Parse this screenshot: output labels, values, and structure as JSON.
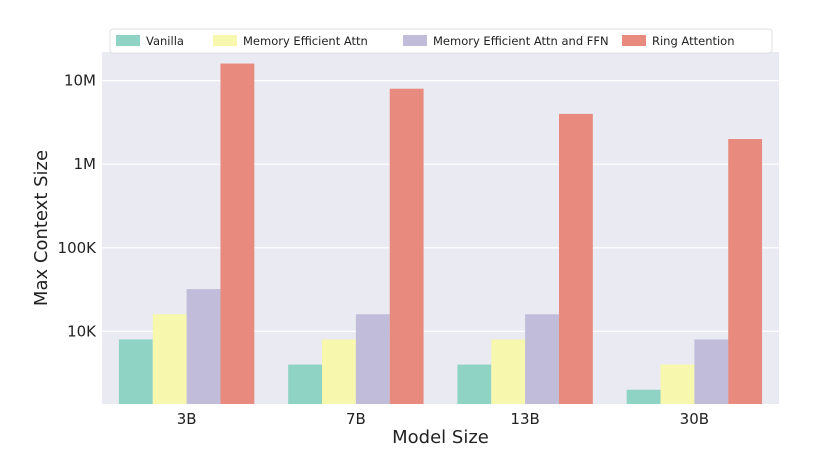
{
  "chart_data": {
    "type": "bar",
    "categories": [
      "3B",
      "7B",
      "13B",
      "30B"
    ],
    "series": [
      {
        "name": "Vanilla",
        "values": [
          8000,
          4000,
          4000,
          2000
        ],
        "color": "#8fd3c4"
      },
      {
        "name": "Memory Efficient Attn",
        "values": [
          16000,
          8000,
          8000,
          4000
        ],
        "color": "#f7f7ad"
      },
      {
        "name": "Memory Efficient Attn and FFN",
        "values": [
          32000,
          16000,
          16000,
          8000
        ],
        "color": "#c0bcd9"
      },
      {
        "name": "Ring Attention",
        "values": [
          16000000,
          8000000,
          4000000,
          2000000
        ],
        "color": "#e88a7d"
      }
    ],
    "xlabel": "Model Size",
    "ylabel": "Max Context Size",
    "yscale": "log",
    "ylim": [
      1350,
      22000000
    ],
    "yticks": [
      10000,
      100000,
      1000000,
      10000000
    ],
    "ytick_labels": [
      "10K",
      "100K",
      "1M",
      "10M"
    ],
    "grid": true,
    "legend_position": "top"
  }
}
